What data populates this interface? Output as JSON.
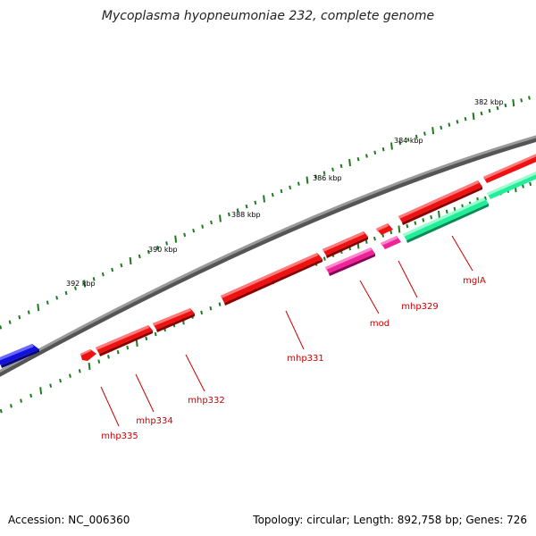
{
  "title": "Mycoplasma hyopneumoniae 232, complete genome",
  "footer": {
    "accession": "Accession: NC_006360",
    "summary": "Topology: circular; Length: 892,758 bp; Genes: 726"
  },
  "colors": {
    "backbone": "#808080",
    "minor_tick": "#1f7a1f",
    "label_line": "#cc0000",
    "forward_gene": "#ee1111",
    "reverse_gene": "#ee1111",
    "pink_gene": "#ee2299",
    "teal_gene": "#22ee99",
    "blue_gene": "#1111dd"
  },
  "scale": {
    "tick_labels": [
      "382 kbp",
      "384 kbp",
      "386 kbp",
      "388 kbp",
      "390 kbp",
      "392 kbp"
    ]
  },
  "genes": [
    {
      "label": "mglA",
      "color": "teal_gene"
    },
    {
      "label": "mhp329",
      "color": "pink_gene"
    },
    {
      "label": "mod",
      "color": "pink_gene"
    },
    {
      "label": "mhp331",
      "color": "forward_gene"
    },
    {
      "label": "mhp332",
      "color": "forward_gene"
    },
    {
      "label": "mhp334",
      "color": "forward_gene"
    },
    {
      "label": "mhp335",
      "color": "forward_gene"
    }
  ]
}
